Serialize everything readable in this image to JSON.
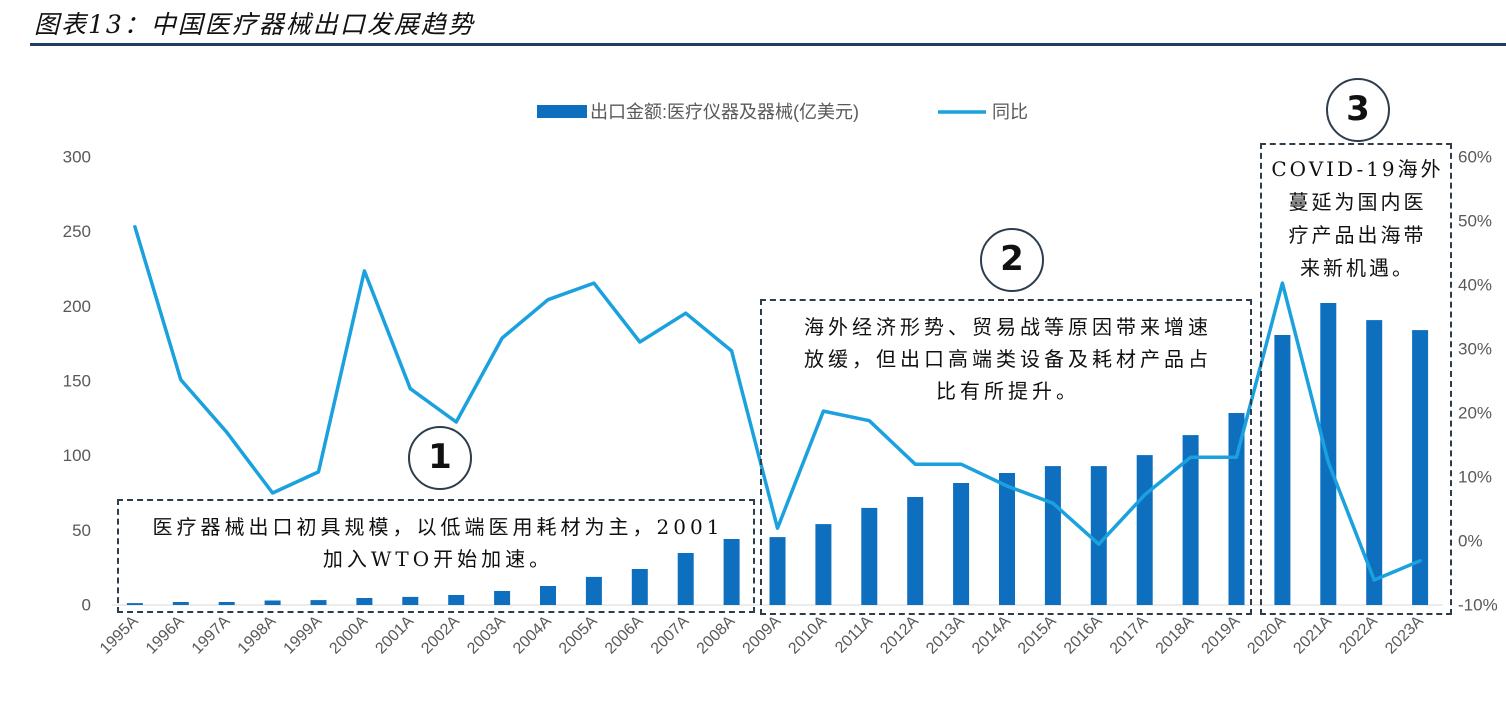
{
  "header": {
    "title": "图表13：中国医疗器械出口发展趋势"
  },
  "colors": {
    "bar": "#0e6fbe",
    "line": "#1aa1de",
    "title_rule": "#21405f",
    "axis_text": "#595959",
    "axis_line": "#d9d9d9",
    "annotation_border": "#2e3d4c"
  },
  "chart_data": {
    "type": "bar",
    "categories": [
      "1995A",
      "1996A",
      "1997A",
      "1998A",
      "1999A",
      "2000A",
      "2001A",
      "2002A",
      "2003A",
      "2004A",
      "2005A",
      "2006A",
      "2007A",
      "2008A",
      "2009A",
      "2010A",
      "2011A",
      "2012A",
      "2013A",
      "2014A",
      "2015A",
      "2016A",
      "2017A",
      "2018A",
      "2019A",
      "2020A",
      "2021A",
      "2022A",
      "2023A"
    ],
    "series": [
      {
        "name": "出口金额:医疗仪器及器械(亿美元)",
        "type": "bar",
        "axis": "left",
        "values": [
          1.3,
          2,
          2,
          3,
          3.3,
          4.7,
          5.4,
          6.7,
          9.4,
          12.7,
          18.8,
          24.1,
          34.8,
          44.2,
          45.5,
          54.2,
          65,
          72.3,
          81.7,
          88.4,
          93,
          93,
          100.4,
          113.8,
          128.6,
          180.8,
          202.2,
          190.8,
          184.1
        ]
      },
      {
        "name": "同比",
        "type": "line",
        "axis": "right",
        "values": [
          49.1,
          25.2,
          17,
          7.5,
          10.8,
          42.2,
          23.8,
          18.6,
          31.7,
          37.7,
          40.3,
          31.1,
          35.6,
          29.7,
          2,
          20.3,
          18.8,
          12,
          12,
          8.6,
          5.9,
          -0.5,
          7.2,
          13.1,
          13.1,
          40.3,
          12.3,
          -6.1,
          -3.1
        ]
      }
    ],
    "ylim": [
      0,
      300
    ],
    "yticks": [
      0,
      50,
      100,
      150,
      200,
      250,
      300
    ],
    "y2lim": [
      -10,
      60
    ],
    "y2ticks": [
      -10,
      0,
      10,
      20,
      30,
      40,
      50,
      60
    ],
    "y2ticklabels": [
      "-10%",
      "0%",
      "10%",
      "20%",
      "30%",
      "40%",
      "50%",
      "60%"
    ],
    "grid": false,
    "legend": "top-center"
  },
  "annotations": [
    {
      "number": "1",
      "lines": [
        "医疗器械出口初具规模，以低端医用耗材为主，2001",
        "加入WTO开始加速。"
      ]
    },
    {
      "number": "2",
      "lines": [
        "海外经济形势、贸易战等原因带来增速",
        "放缓，但出口高端类设备及耗材产品占",
        "比有所提升。"
      ]
    },
    {
      "number": "3",
      "lines": [
        "COVID-19海外",
        "蔓延为国内医",
        "疗产品出海带",
        "来新机遇。"
      ]
    }
  ]
}
